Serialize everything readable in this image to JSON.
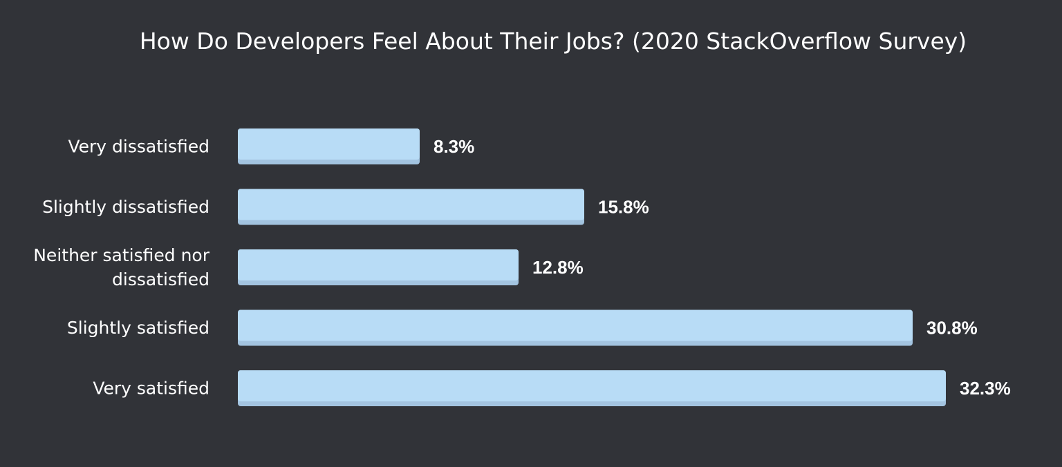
{
  "chart_data": {
    "type": "bar",
    "orientation": "horizontal",
    "title": "How Do Developers Feel About Their Jobs? (2020 StackOverflow Survey)",
    "categories": [
      [
        "Very dissatisfied"
      ],
      [
        "Slightly dissatisfied"
      ],
      [
        "Neither satisfied nor",
        "dissatisfied"
      ],
      [
        "Slightly satisfied"
      ],
      [
        "Very satisfied"
      ]
    ],
    "values": [
      8.3,
      15.8,
      12.8,
      30.8,
      32.3
    ],
    "value_labels": [
      "8.3%",
      "15.8%",
      "12.8%",
      "30.8%",
      "32.3%"
    ],
    "xlabel": "",
    "ylabel": "",
    "xlim": [
      0,
      32.3
    ],
    "grid": false,
    "legend": "none",
    "colors": {
      "background": "#313338",
      "bar": "#b8dcf6",
      "bar_shadow": "#a3c4e0",
      "text": "#ffffff"
    }
  }
}
